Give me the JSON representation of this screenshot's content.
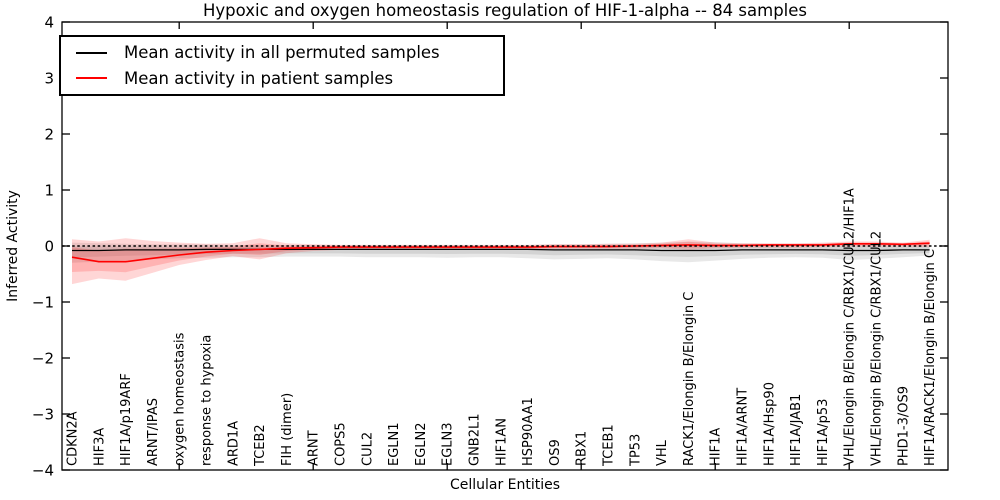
{
  "chart_data": {
    "type": "line",
    "title": "Hypoxic and oxygen homeostasis regulation of HIF-1-alpha -- 84 samples",
    "xlabel": "Cellular Entities",
    "ylabel": "Inferred Activity",
    "ylim": [
      -4,
      4
    ],
    "yticks": [
      4,
      3,
      2,
      1,
      0,
      -1,
      -2,
      -3,
      -4
    ],
    "x_major_tick_indices": [
      4,
      9,
      14,
      19,
      24,
      29
    ],
    "grid": false,
    "legend_position": "upper left",
    "zero_line_style": "dashed",
    "categories": [
      "CDKN2A",
      "HIF3A",
      "HIF1A/p19ARF",
      "ARNT/IPAS",
      "oxygen homeostasis",
      "response to hypoxia",
      "ARD1A",
      "TCEB2",
      "FIH (dimer)",
      "ARNT",
      "COPS5",
      "CUL2",
      "EGLN1",
      "EGLN2",
      "EGLN3",
      "GNB2L1",
      "HIF1AN",
      "HSP90AA1",
      "OS9",
      "RBX1",
      "TCEB1",
      "TP53",
      "VHL",
      "RACK1/Elongin B/Elongin C",
      "HIF1A",
      "HIF1A/ARNT",
      "HIF1A/Hsp90",
      "HIF1A/JAB1",
      "HIF1A/p53",
      "VHL/Elongin B/Elongin C/RBX1/CUL2/HIF1A",
      "VHL/Elongin B/Elongin C/RBX1/CUL2",
      "PHD1-3/OS9",
      "HIF1A/RACK1/Elongin B/Elongin C"
    ],
    "series": [
      {
        "name": "Mean activity in all permuted samples",
        "color": "#000000",
        "band_color": "rgba(0,0,0,0.09)",
        "values": [
          -0.08,
          -0.08,
          -0.07,
          -0.07,
          -0.07,
          -0.06,
          -0.06,
          -0.06,
          -0.06,
          -0.06,
          -0.06,
          -0.06,
          -0.06,
          -0.06,
          -0.06,
          -0.06,
          -0.06,
          -0.06,
          -0.07,
          -0.07,
          -0.07,
          -0.07,
          -0.08,
          -0.08,
          -0.08,
          -0.07,
          -0.07,
          -0.07,
          -0.07,
          -0.08,
          -0.08,
          -0.07,
          -0.07
        ],
        "band_upper": [
          0.06,
          0.05,
          0.04,
          0.03,
          0.03,
          0.03,
          0.02,
          0.02,
          0.02,
          0.02,
          0.02,
          0.02,
          0.02,
          0.02,
          0.02,
          0.02,
          0.02,
          0.02,
          0.03,
          0.03,
          0.04,
          0.05,
          0.06,
          0.08,
          0.07,
          0.05,
          0.04,
          0.04,
          0.04,
          0.05,
          0.05,
          0.04,
          0.04
        ],
        "band_lower": [
          -0.3,
          -0.28,
          -0.26,
          -0.24,
          -0.22,
          -0.21,
          -0.2,
          -0.2,
          -0.19,
          -0.19,
          -0.19,
          -0.2,
          -0.2,
          -0.2,
          -0.21,
          -0.2,
          -0.2,
          -0.22,
          -0.24,
          -0.23,
          -0.22,
          -0.24,
          -0.27,
          -0.29,
          -0.26,
          -0.23,
          -0.21,
          -0.2,
          -0.21,
          -0.25,
          -0.23,
          -0.2,
          -0.17
        ]
      },
      {
        "name": "Mean activity in patient samples",
        "color": "#ff0000",
        "band_color": "rgba(255,0,0,0.16)",
        "values": [
          -0.2,
          -0.28,
          -0.28,
          -0.22,
          -0.16,
          -0.11,
          -0.08,
          -0.06,
          -0.04,
          -0.03,
          -0.02,
          -0.02,
          -0.02,
          -0.02,
          -0.02,
          -0.02,
          -0.02,
          -0.02,
          -0.01,
          -0.01,
          -0.01,
          0.0,
          0.01,
          0.02,
          0.01,
          0.01,
          0.02,
          0.02,
          0.02,
          0.04,
          0.04,
          0.03,
          0.05
        ],
        "band_upper": [
          0.12,
          0.08,
          0.14,
          0.09,
          0.06,
          0.04,
          0.05,
          0.14,
          0.05,
          0.03,
          0.02,
          0.02,
          0.02,
          0.02,
          0.02,
          0.02,
          0.02,
          0.02,
          0.03,
          0.03,
          0.04,
          0.04,
          0.06,
          0.12,
          0.06,
          0.05,
          0.05,
          0.05,
          0.06,
          0.08,
          0.08,
          0.06,
          0.11
        ],
        "band_lower": [
          -0.68,
          -0.58,
          -0.62,
          -0.48,
          -0.34,
          -0.25,
          -0.18,
          -0.24,
          -0.13,
          -0.09,
          -0.07,
          -0.06,
          -0.06,
          -0.06,
          -0.06,
          -0.06,
          -0.06,
          -0.06,
          -0.05,
          -0.05,
          -0.05,
          -0.05,
          -0.04,
          -0.07,
          -0.04,
          -0.03,
          -0.03,
          -0.03,
          -0.02,
          -0.01,
          -0.01,
          -0.01,
          -0.02
        ]
      }
    ]
  }
}
